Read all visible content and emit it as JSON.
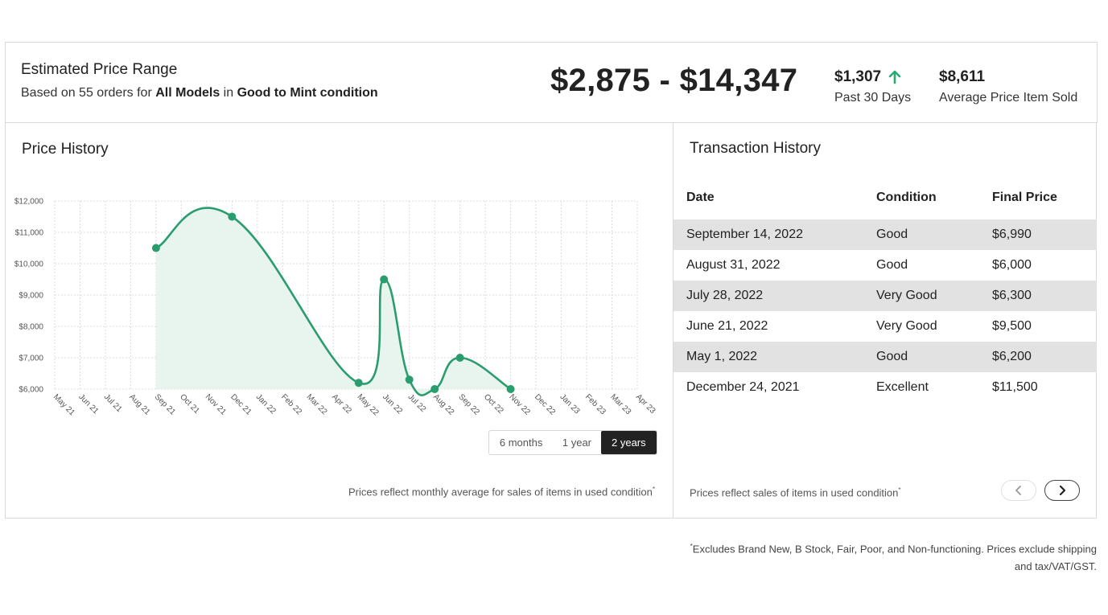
{
  "summary": {
    "title": "Estimated Price Range",
    "subtitle_prefix": "Based on 55 orders for ",
    "subtitle_models": "All Models",
    "subtitle_mid": " in ",
    "subtitle_condition": "Good to Mint condition",
    "range": "$2,875 - $14,347",
    "change_value": "$1,307",
    "change_icon": "arrow-up-icon",
    "change_color": "#2aa876",
    "change_label": "Past 30 Days",
    "avg_value": "$8,611",
    "avg_label": "Average Price Item Sold"
  },
  "price_history": {
    "title": "Price History",
    "ranges": [
      "6 months",
      "1 year",
      "2 years"
    ],
    "selected_range": "2 years",
    "note": "Prices reflect monthly average for sales of items in used condition",
    "note_mark": "*"
  },
  "chart_data": {
    "type": "area",
    "line_color": "#2a9d6f",
    "fill_color": "#e8f4ee",
    "grid": true,
    "categories": [
      "May 21",
      "Jun 21",
      "Jul 21",
      "Aug 21",
      "Sep 21",
      "Oct 21",
      "Nov 21",
      "Dec 21",
      "Jan 22",
      "Feb 22",
      "Mar 22",
      "Apr 22",
      "May 22",
      "Jun 22",
      "Jul 22",
      "Aug 22",
      "Sep 22",
      "Oct 22",
      "Nov 22",
      "Dec 22",
      "Jan 23",
      "Feb 23",
      "Mar 23",
      "Apr 23"
    ],
    "y_ticks": [
      "$12,000",
      "$11,000",
      "$10,000",
      "$9,000",
      "$8,000",
      "$7,000",
      "$6,000"
    ],
    "ylim": [
      6000,
      12000
    ],
    "points": [
      {
        "x": "Sep 21",
        "y": 10500
      },
      {
        "x": "Dec 21",
        "y": 11500
      },
      {
        "x": "May 22",
        "y": 6200
      },
      {
        "x": "Jun 22",
        "y": 9500
      },
      {
        "x": "Jul 22",
        "y": 6300
      },
      {
        "x": "Aug 22",
        "y": 6000
      },
      {
        "x": "Sep 22",
        "y": 7000
      },
      {
        "x": "Nov 22",
        "y": 6000
      }
    ]
  },
  "transactions": {
    "title": "Transaction History",
    "headers": [
      "Date",
      "Condition",
      "Final Price"
    ],
    "rows": [
      {
        "date": "September 14, 2022",
        "condition": "Good",
        "price": "$6,990"
      },
      {
        "date": "August 31, 2022",
        "condition": "Good",
        "price": "$6,000"
      },
      {
        "date": "July 28, 2022",
        "condition": "Very Good",
        "price": "$6,300"
      },
      {
        "date": "June 21, 2022",
        "condition": "Very Good",
        "price": "$9,500"
      },
      {
        "date": "May 1, 2022",
        "condition": "Good",
        "price": "$6,200"
      },
      {
        "date": "December 24, 2021",
        "condition": "Excellent",
        "price": "$11,500"
      }
    ],
    "note": "Prices reflect sales of items in used condition",
    "note_mark": "*",
    "prev_icon": "chevron-left-icon",
    "next_icon": "chevron-right-icon"
  },
  "footnote": {
    "mark": "*",
    "text": "Excludes Brand New, B Stock, Fair, Poor, and Non-functioning. Prices exclude shipping and tax/VAT/GST."
  }
}
